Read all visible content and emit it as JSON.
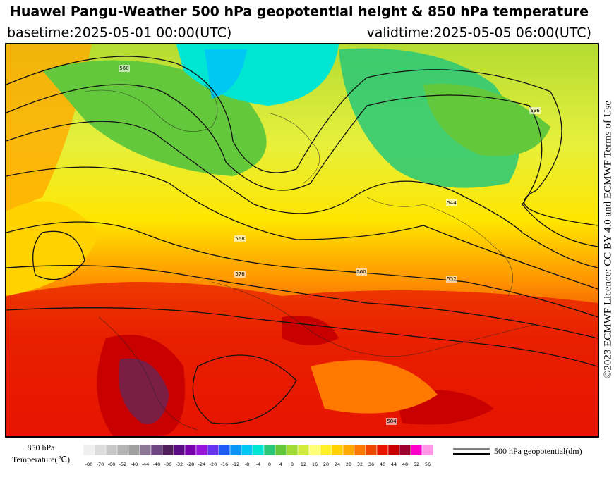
{
  "header": {
    "title": "Huawei Pangu-Weather 500 hPa geopotential height & 850 hPa temperature",
    "basetime": "basetime:2025-05-01 00:00(UTC)",
    "validtime": "validtime:2025-05-05 06:00(UTC)"
  },
  "map": {
    "contour_labels": [
      "560",
      "568",
      "576",
      "552",
      "544",
      "536",
      "584",
      "560"
    ]
  },
  "side_note": "©2023 ECMWF Licence: CC BY 4.0 and ECMWF Terms of Use",
  "legend": {
    "temperature_label_1": "850 hPa",
    "temperature_label_2": "Temperature(℃)",
    "contour_label": "500 hPa geopotential(dm)",
    "ticks": [
      -80,
      -70,
      -60,
      -52,
      -48,
      -44,
      -40,
      -36,
      -32,
      -28,
      -24,
      -20,
      -16,
      -12,
      -8,
      -4,
      0,
      4,
      8,
      12,
      16,
      20,
      24,
      28,
      32,
      36,
      40,
      44,
      48,
      52,
      56
    ],
    "colors": [
      "#efefef",
      "#dcdcdc",
      "#c8c8c8",
      "#b4b4b4",
      "#a0a0a0",
      "#8c7896",
      "#6e4682",
      "#501e5a",
      "#5a0a82",
      "#7800aa",
      "#9614dc",
      "#6432f0",
      "#1e5af5",
      "#0a96f5",
      "#00c8f5",
      "#00e6d2",
      "#28c878",
      "#64c83c",
      "#a0dc32",
      "#d2ec3c",
      "#ffff78",
      "#fff028",
      "#ffd200",
      "#ffaa00",
      "#ff7800",
      "#f04600",
      "#e61400",
      "#c80000",
      "#a0002d",
      "#ff00c8",
      "#ff96e6"
    ]
  }
}
